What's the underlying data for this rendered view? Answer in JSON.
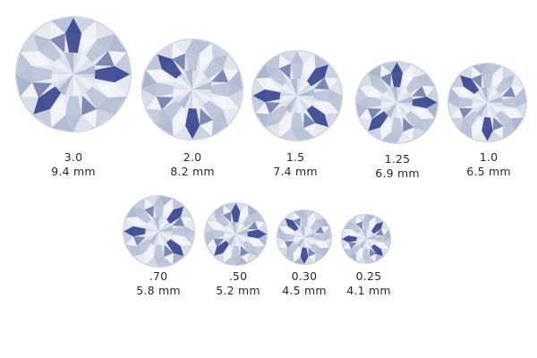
{
  "diamonds": [
    {
      "carat": "3.0",
      "diameter": "9.4 mm"
    },
    {
      "carat": "2.0",
      "diameter": "8.2 mm"
    },
    {
      "carat": "1.5",
      "diameter": "7.4 mm"
    },
    {
      "carat": "1.25",
      "diameter": "6.9 mm"
    },
    {
      "carat": "1.0",
      "diameter": "6.5 mm"
    },
    {
      "carat": ".70",
      "diameter": "5.8 mm"
    },
    {
      "carat": ".50",
      "diameter": "5.2 mm"
    },
    {
      "carat": "0.30",
      "diameter": "4.5 mm"
    },
    {
      "carat": "0.25",
      "diameter": "4.1 mm"
    }
  ],
  "colors": {
    "facet_dark": "#2b3a88",
    "facet_mid": "#8a97b8",
    "facet_light": "#e4e9f2",
    "outline": "#b9c2d3",
    "label_text": "#2a2a2a"
  }
}
